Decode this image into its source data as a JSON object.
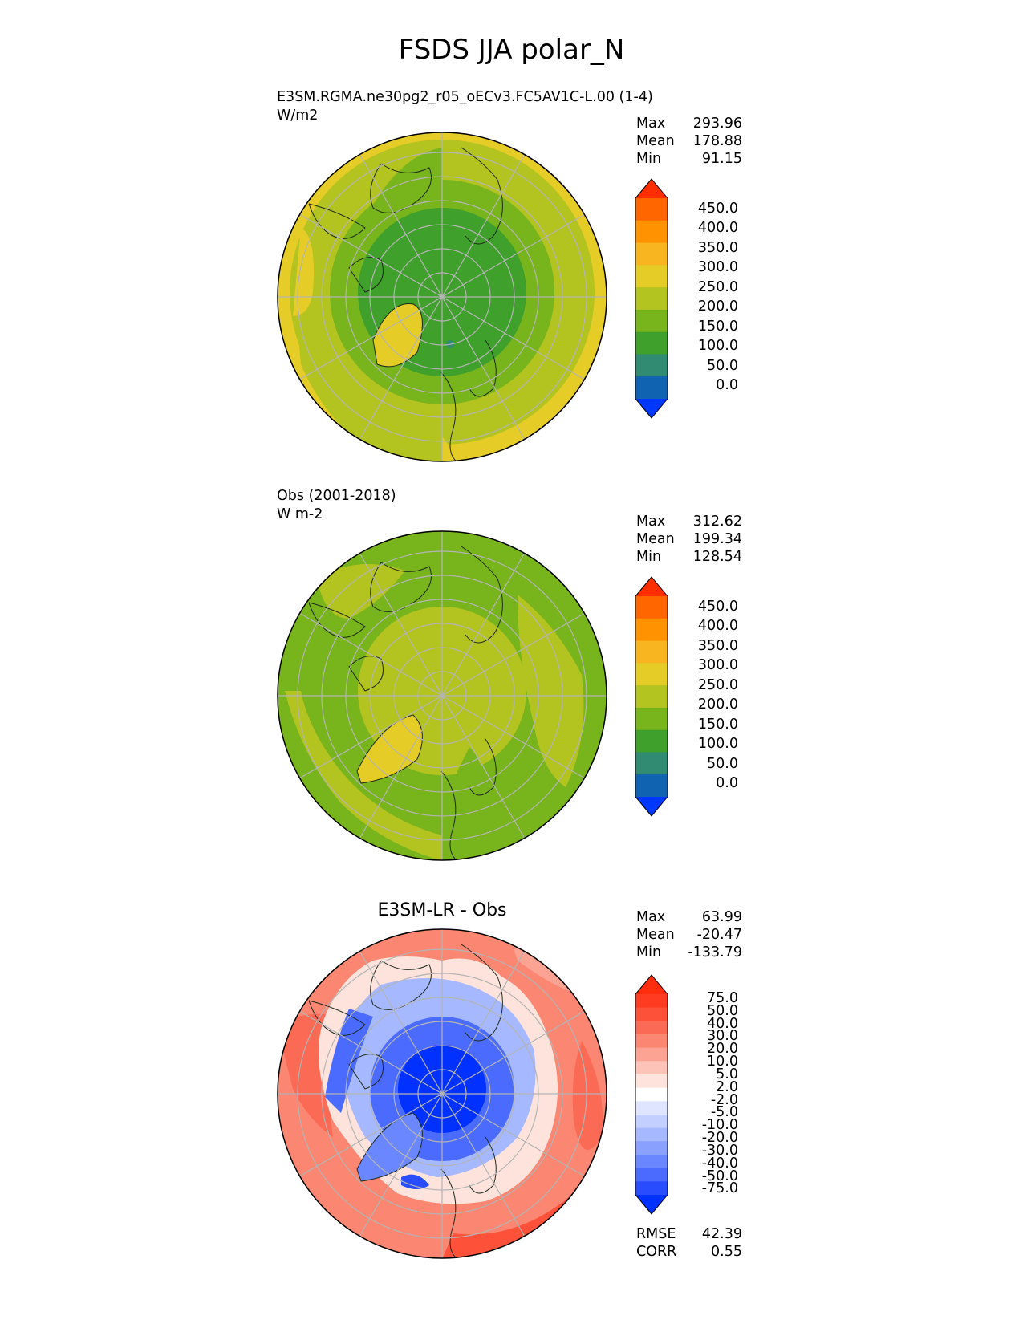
{
  "title": "FSDS JJA polar_N",
  "panels": [
    {
      "id": "model",
      "name_line": "E3SM.RGMA.ne30pg2_r05_oECv3.FC5AV1C-L.00 (1-4)",
      "units": "W/m2",
      "stats": [
        {
          "key": "Max",
          "value": "293.96"
        },
        {
          "key": "Mean",
          "value": "178.88"
        },
        {
          "key": "Min",
          "value": "91.15"
        }
      ],
      "colorbar": {
        "tick_labels": [
          "450.0",
          "400.0",
          "350.0",
          "300.0",
          "250.0",
          "200.0",
          "150.0",
          "100.0",
          "50.0",
          "0.0"
        ],
        "colors": [
          "#ff2d00",
          "#ff6600",
          "#ff9200",
          "#f9b51f",
          "#e6cc27",
          "#b3c320",
          "#78b41c",
          "#3fa02b",
          "#318a72",
          "#0f63b0",
          "#0038ff"
        ]
      }
    },
    {
      "id": "obs",
      "name_line": "Obs (2001-2018)",
      "units": "W m-2",
      "stats": [
        {
          "key": "Max",
          "value": "312.62"
        },
        {
          "key": "Mean",
          "value": "199.34"
        },
        {
          "key": "Min",
          "value": "128.54"
        }
      ],
      "colorbar": {
        "tick_labels": [
          "450.0",
          "400.0",
          "350.0",
          "300.0",
          "250.0",
          "200.0",
          "150.0",
          "100.0",
          "50.0",
          "0.0"
        ],
        "colors": [
          "#ff2d00",
          "#ff6600",
          "#ff9200",
          "#f9b51f",
          "#e6cc27",
          "#b3c320",
          "#78b41c",
          "#3fa02b",
          "#318a72",
          "#0f63b0",
          "#0038ff"
        ]
      }
    },
    {
      "id": "diff",
      "panel_title": "E3SM-LR - Obs",
      "stats": [
        {
          "key": "Max",
          "value": "63.99"
        },
        {
          "key": "Mean",
          "value": "-20.47"
        },
        {
          "key": "Min",
          "value": "-133.79"
        }
      ],
      "colorbar": {
        "tick_labels": [
          "75.0",
          "50.0",
          "40.0",
          "30.0",
          "20.0",
          "10.0",
          "5.0",
          "2.0",
          "-2.0",
          "-5.0",
          "-10.0",
          "-20.0",
          "-30.0",
          "-40.0",
          "-50.0",
          "-75.0"
        ],
        "colors": [
          "#ff2d0e",
          "#ff3c22",
          "#fd5239",
          "#fb6a55",
          "#fb8672",
          "#fca393",
          "#fdc3b8",
          "#fde3dc",
          "#ffffff",
          "#dfe5ff",
          "#c3cfff",
          "#a6b8ff",
          "#89a0ff",
          "#6b87ff",
          "#4b6bff",
          "#2a4cff",
          "#0031ff"
        ]
      },
      "metrics": [
        {
          "key": "RMSE",
          "value": "42.39"
        },
        {
          "key": "CORR",
          "value": "0.55"
        }
      ]
    }
  ]
}
